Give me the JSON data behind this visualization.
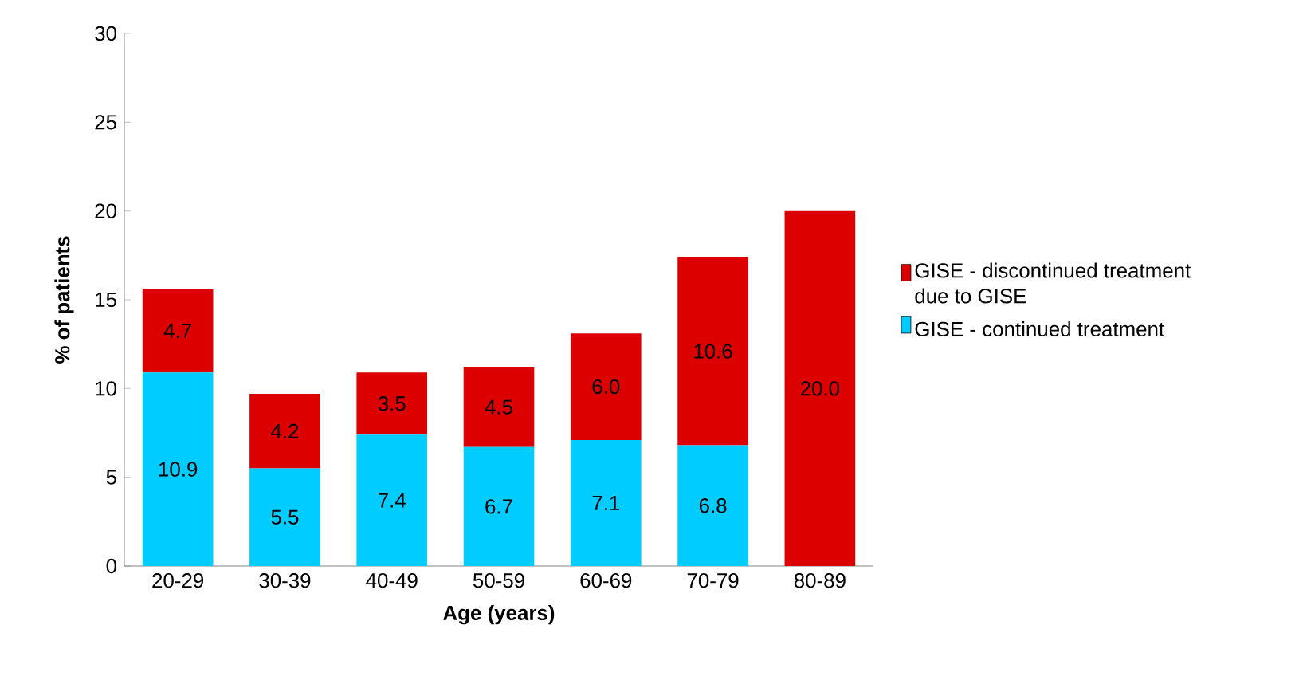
{
  "chart_data": {
    "type": "bar",
    "stacked": true,
    "xlabel": "Age (years)",
    "ylabel": "% of patients",
    "categories": [
      "20-29",
      "30-39",
      "40-49",
      "50-59",
      "60-69",
      "70-79",
      "80-89"
    ],
    "series": [
      {
        "name": "GISE - continued treatment",
        "color": "#00ccff",
        "values": [
          10.9,
          5.5,
          7.4,
          6.7,
          7.1,
          6.8,
          0
        ],
        "value_labels": [
          "10.9",
          "5.5",
          "7.4",
          "6.7",
          "7.1",
          "6.8",
          null
        ]
      },
      {
        "name": "GISE - discontinued treatment due to GISE",
        "color": "#dd0000",
        "values": [
          4.7,
          4.2,
          3.5,
          4.5,
          6.0,
          10.6,
          20.0
        ],
        "value_labels": [
          "4.7",
          "4.2",
          "3.5",
          "4.5",
          "6.0",
          "10.6",
          "20.0"
        ]
      }
    ],
    "ylim": [
      0,
      30
    ],
    "yticks": [
      0,
      5,
      10,
      15,
      20,
      25,
      30
    ],
    "legend": "right",
    "grid": false
  }
}
